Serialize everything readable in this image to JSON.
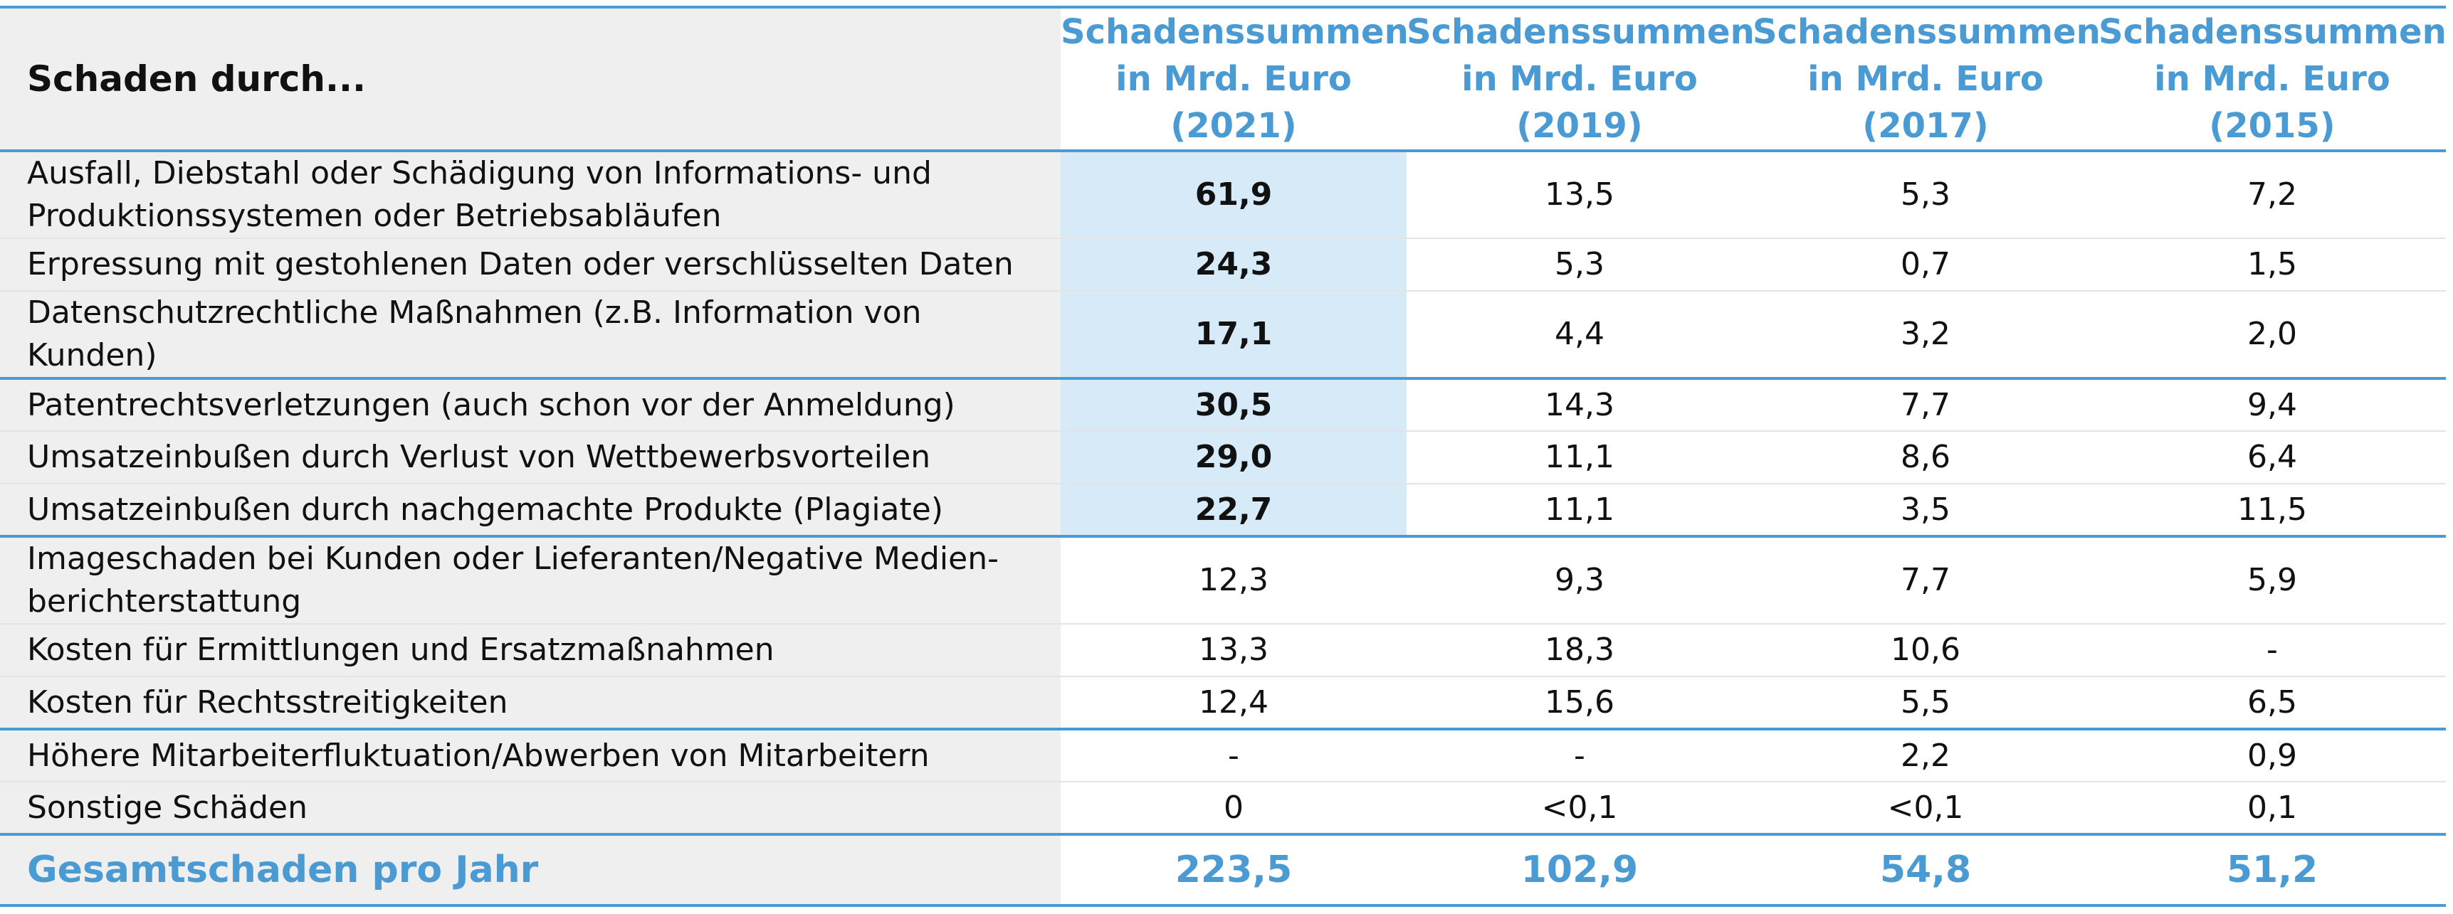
{
  "chart_data": {
    "type": "table",
    "row_header": "Schaden durch...",
    "columns": [
      "Schadenssummen\nin Mrd. Euro (2021)",
      "Schadenssummen\nin Mrd. Euro (2019)",
      "Schadenssummen\nin Mrd. Euro (2017)",
      "Schadenssummen\nin Mrd. Euro (2015)"
    ],
    "column_head_lines": [
      [
        "Schadenssummen",
        "in Mrd. Euro (2021)"
      ],
      [
        "Schadenssummen",
        "in Mrd. Euro (2019)"
      ],
      [
        "Schadenssummen",
        "in Mrd. Euro (2017)"
      ],
      [
        "Schadenssummen",
        "in Mrd. Euro (2015)"
      ]
    ],
    "rows": [
      {
        "label": "Ausfall, Diebstahl oder Schädigung von Informations- und Produktionssystemen oder Betriebsabläufen",
        "values": [
          "61,9",
          "13,5",
          "5,3",
          "7,2"
        ],
        "highlight": true
      },
      {
        "label": "Erpressung mit gestohlenen Daten oder verschlüsselten Daten",
        "values": [
          "24,3",
          "5,3",
          "0,7",
          "1,5"
        ],
        "highlight": true
      },
      {
        "label": "Datenschutzrechtliche Maßnahmen (z.B. Information von Kunden)",
        "values": [
          "17,1",
          "4,4",
          "3,2",
          "2,0"
        ],
        "highlight": true
      },
      {
        "label": "Patentrechtsverletzungen (auch schon vor der Anmeldung)",
        "values": [
          "30,5",
          "14,3",
          "7,7",
          "9,4"
        ],
        "highlight": true
      },
      {
        "label": "Umsatzeinbußen durch Verlust von Wettbewerbsvorteilen",
        "values": [
          "29,0",
          "11,1",
          "8,6",
          "6,4"
        ],
        "highlight": true
      },
      {
        "label": "Umsatzeinbußen durch nachgemachte Produkte (Plagiate)",
        "values": [
          "22,7",
          "11,1",
          "3,5",
          "11,5"
        ],
        "highlight": true
      },
      {
        "label": "Imageschaden bei Kunden oder Lieferanten/Negative Medienberichterstattung",
        "values": [
          "12,3",
          "9,3",
          "7,7",
          "5,9"
        ],
        "highlight": false
      },
      {
        "label": "Kosten für Ermittlungen und Ersatzmaßnahmen",
        "values": [
          "13,3",
          "18,3",
          "10,6",
          "-"
        ],
        "highlight": false
      },
      {
        "label": "Kosten für Rechtsstreitigkeiten",
        "values": [
          "12,4",
          "15,6",
          "5,5",
          "6,5"
        ],
        "highlight": false
      },
      {
        "label": "Höhere Mitarbeiterfluktuation/Abwerben von Mitarbeitern",
        "values": [
          "-",
          "-",
          "2,2",
          "0,9"
        ],
        "highlight": false
      },
      {
        "label": "Sonstige Schäden",
        "values": [
          "0",
          "<0,1",
          "<0,1",
          "0,1"
        ],
        "highlight": false
      }
    ],
    "row_lines": [
      [
        "Ausfall, Diebstahl oder Schädigung von Informations- und",
        "Produktionssystemen oder Betriebsabläufen"
      ],
      [
        "Erpressung mit gestohlenen Daten oder verschlüsselten Daten"
      ],
      [
        "Datenschutzrechtliche Maßnahmen (z.B. Information von Kunden)"
      ],
      [
        "Patentrechtsverletzungen (auch schon vor der Anmeldung)"
      ],
      [
        "Umsatzeinbußen durch Verlust von Wettbewerbsvorteilen"
      ],
      [
        "Umsatzeinbußen durch nachgemachte Produkte (Plagiate)"
      ],
      [
        "Imageschaden bei Kunden oder Lieferanten/Negative Medien-",
        "berichterstattung"
      ],
      [
        "Kosten für Ermittlungen und Ersatzmaßnahmen"
      ],
      [
        "Kosten für Rechtsstreitigkeiten"
      ],
      [
        "Höhere Mitarbeiterfluktuation/Abwerben von Mitarbeitern"
      ],
      [
        "Sonstige Schäden"
      ]
    ],
    "total": {
      "label": "Gesamtschaden pro Jahr",
      "values": [
        "223,5",
        "102,9",
        "54,8",
        "51,2"
      ]
    },
    "group_starts": [
      0,
      3,
      6,
      9
    ],
    "colors": {
      "accent": "#4a9ad4",
      "highlight": "#d6eaf7",
      "label_bg": "#efefef",
      "text": "#111111"
    }
  }
}
